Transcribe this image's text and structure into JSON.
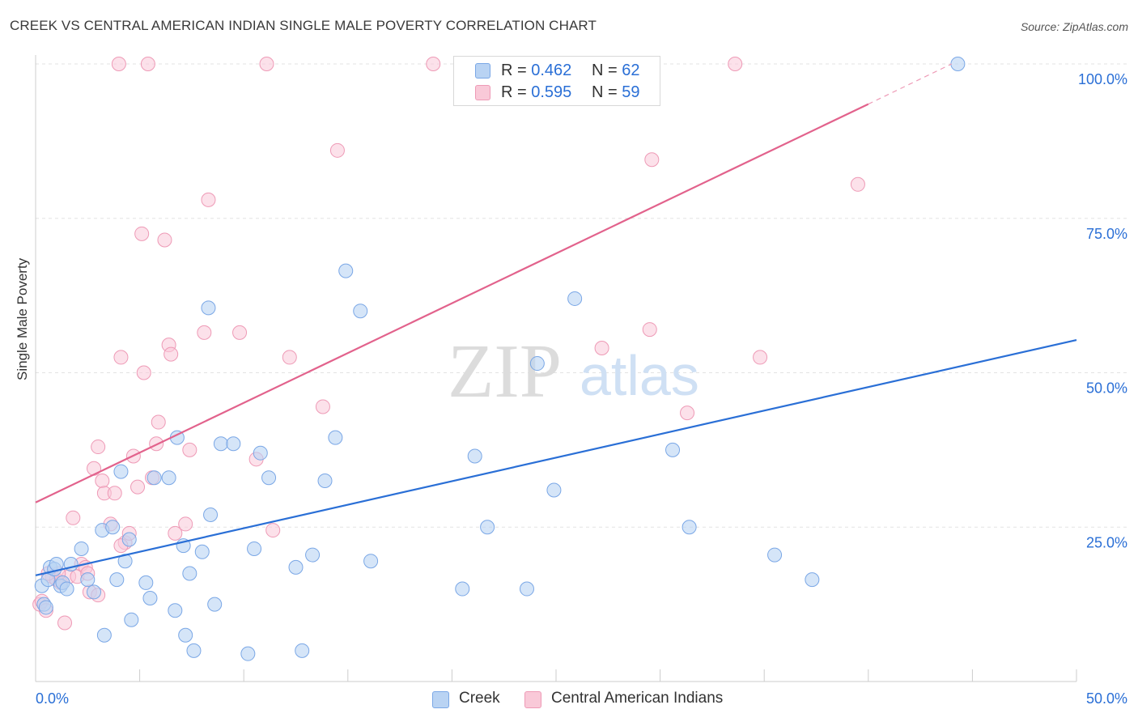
{
  "title": "CREEK VS CENTRAL AMERICAN INDIAN SINGLE MALE POVERTY CORRELATION CHART",
  "source": "Source: ZipAtlas.com",
  "watermark": {
    "zip": "ZIP",
    "atlas": "atlas"
  },
  "legend": {
    "creek": {
      "r_label": "R =",
      "r_value": "0.462",
      "n_label": "N =",
      "n_value": "62"
    },
    "cai": {
      "r_label": "R =",
      "r_value": "0.595",
      "n_label": "N =",
      "n_value": "59"
    }
  },
  "bottom_legend": {
    "creek": "Creek",
    "cai": "Central American Indians"
  },
  "colors": {
    "creek_fill": "#b9d3f3",
    "creek_stroke": "#7aa7e6",
    "creek_line": "#2a6fd6",
    "cai_fill": "#f9c9d8",
    "cai_stroke": "#ee9ab6",
    "cai_line": "#e2628c",
    "axis_text": "#2a6fd6"
  },
  "chart_data": {
    "type": "scatter",
    "title": "CREEK VS CENTRAL AMERICAN INDIAN SINGLE MALE POVERTY CORRELATION CHART",
    "xlabel": "",
    "ylabel": "Single Male Poverty",
    "xlim": [
      0,
      50
    ],
    "ylim": [
      0,
      100
    ],
    "x_tick_labels": [
      "0.0%",
      "50.0%"
    ],
    "y_tick_labels": [
      "25.0%",
      "50.0%",
      "75.0%",
      "100.0%"
    ],
    "y_ticks": [
      25,
      50,
      75,
      100
    ],
    "series": [
      {
        "name": "Creek",
        "r": 0.462,
        "n": 62,
        "trend": {
          "x": [
            0,
            50
          ],
          "y": [
            17.2,
            55.3
          ]
        },
        "points": [
          [
            0.3,
            15.5
          ],
          [
            0.4,
            12.5
          ],
          [
            0.5,
            12.0
          ],
          [
            0.6,
            16.5
          ],
          [
            0.7,
            18.5
          ],
          [
            0.9,
            18.2
          ],
          [
            1.0,
            19.0
          ],
          [
            1.2,
            15.5
          ],
          [
            1.3,
            16.0
          ],
          [
            1.5,
            15.0
          ],
          [
            2.2,
            21.5
          ],
          [
            2.5,
            16.5
          ],
          [
            2.8,
            14.5
          ],
          [
            3.2,
            24.5
          ],
          [
            3.7,
            25.0
          ],
          [
            3.9,
            16.5
          ],
          [
            4.1,
            34.0
          ],
          [
            4.3,
            19.5
          ],
          [
            4.5,
            23.0
          ],
          [
            4.6,
            10.0
          ],
          [
            5.3,
            16.0
          ],
          [
            5.5,
            13.5
          ],
          [
            5.7,
            33.0
          ],
          [
            6.4,
            33.0
          ],
          [
            6.7,
            11.5
          ],
          [
            6.8,
            39.5
          ],
          [
            7.1,
            22.0
          ],
          [
            7.2,
            7.5
          ],
          [
            7.4,
            17.5
          ],
          [
            7.6,
            5.0
          ],
          [
            8.0,
            21.0
          ],
          [
            8.3,
            60.5
          ],
          [
            8.4,
            27.0
          ],
          [
            8.6,
            12.5
          ],
          [
            8.9,
            38.5
          ],
          [
            9.5,
            38.5
          ],
          [
            10.2,
            4.5
          ],
          [
            10.5,
            21.5
          ],
          [
            10.8,
            37.0
          ],
          [
            11.2,
            33.0
          ],
          [
            12.5,
            18.5
          ],
          [
            12.8,
            5.0
          ],
          [
            13.3,
            20.5
          ],
          [
            13.9,
            32.5
          ],
          [
            14.4,
            39.5
          ],
          [
            14.9,
            66.5
          ],
          [
            15.6,
            60.0
          ],
          [
            16.1,
            19.5
          ],
          [
            20.5,
            15.0
          ],
          [
            21.1,
            36.5
          ],
          [
            21.7,
            25.0
          ],
          [
            23.6,
            15.0
          ],
          [
            24.1,
            51.5
          ],
          [
            24.9,
            31.0
          ],
          [
            25.9,
            62.0
          ],
          [
            30.6,
            37.5
          ],
          [
            31.4,
            25.0
          ],
          [
            35.5,
            20.5
          ],
          [
            37.3,
            16.5
          ],
          [
            44.3,
            100.0
          ],
          [
            1.7,
            19.0
          ],
          [
            3.3,
            7.5
          ]
        ]
      },
      {
        "name": "Central American Indians",
        "r": 0.595,
        "n": 59,
        "trend": {
          "x": [
            0,
            40
          ],
          "y": [
            29.0,
            93.5
          ]
        },
        "trend_dashed": {
          "x": [
            40,
            44
          ],
          "y": [
            93.5,
            100.0
          ]
        },
        "points": [
          [
            0.2,
            12.5
          ],
          [
            0.3,
            13.0
          ],
          [
            0.5,
            11.5
          ],
          [
            0.8,
            17.0
          ],
          [
            1.0,
            16.5
          ],
          [
            1.2,
            16.0
          ],
          [
            1.4,
            9.5
          ],
          [
            1.6,
            17.0
          ],
          [
            1.8,
            26.5
          ],
          [
            2.0,
            17.0
          ],
          [
            2.2,
            19.0
          ],
          [
            2.4,
            18.5
          ],
          [
            2.6,
            14.5
          ],
          [
            2.8,
            34.5
          ],
          [
            3.0,
            38.0
          ],
          [
            3.2,
            32.5
          ],
          [
            3.3,
            30.5
          ],
          [
            3.6,
            25.5
          ],
          [
            3.8,
            30.5
          ],
          [
            4.0,
            100.0
          ],
          [
            4.1,
            52.5
          ],
          [
            4.3,
            22.5
          ],
          [
            4.5,
            24.0
          ],
          [
            4.7,
            36.5
          ],
          [
            4.9,
            31.5
          ],
          [
            5.1,
            72.5
          ],
          [
            5.2,
            50.0
          ],
          [
            5.4,
            100.0
          ],
          [
            5.6,
            33.0
          ],
          [
            5.8,
            38.5
          ],
          [
            5.9,
            42.0
          ],
          [
            6.2,
            71.5
          ],
          [
            6.4,
            54.5
          ],
          [
            6.5,
            53.0
          ],
          [
            6.7,
            24.0
          ],
          [
            7.2,
            25.5
          ],
          [
            7.4,
            37.5
          ],
          [
            8.1,
            56.5
          ],
          [
            8.3,
            78.0
          ],
          [
            9.8,
            56.5
          ],
          [
            10.6,
            36.0
          ],
          [
            11.1,
            100.0
          ],
          [
            11.4,
            24.5
          ],
          [
            12.2,
            52.5
          ],
          [
            13.8,
            44.5
          ],
          [
            14.5,
            86.0
          ],
          [
            19.1,
            100.0
          ],
          [
            27.2,
            54.0
          ],
          [
            29.5,
            57.0
          ],
          [
            29.6,
            84.5
          ],
          [
            31.3,
            43.5
          ],
          [
            33.6,
            100.0
          ],
          [
            34.8,
            52.5
          ],
          [
            39.5,
            80.5
          ],
          [
            2.5,
            17.5
          ],
          [
            3.0,
            14.0
          ],
          [
            1.1,
            17.5
          ],
          [
            4.1,
            22.0
          ],
          [
            0.6,
            17.5
          ]
        ]
      }
    ]
  }
}
